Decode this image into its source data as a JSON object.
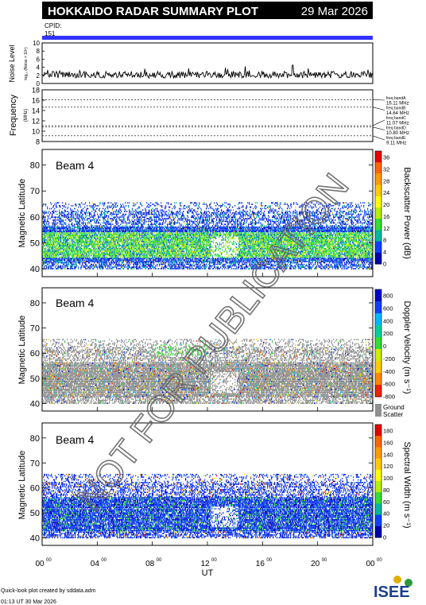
{
  "header": {
    "title": "HOKKAIDO RADAR SUMMARY PLOT",
    "date": "29 Mar 2026"
  },
  "cpid": {
    "label": "CPID:",
    "value": "151"
  },
  "noise": {
    "ylabel": "Noise Level",
    "ylabel_sub": "log₁₀ (Noise × 10⁶)",
    "ylim": [
      0,
      10
    ],
    "ticks": [
      "0",
      "2",
      "4",
      "6",
      "8",
      "10"
    ]
  },
  "frequency": {
    "ylabel": "Frequency",
    "ylabel_sub": "(MHz)",
    "ylim": [
      8,
      18
    ],
    "ticks": [
      "8",
      "10",
      "12",
      "14",
      "16",
      "18"
    ],
    "bands": [
      {
        "label": "freq bandA",
        "value": "16.11 MHz",
        "mhz": 16.11
      },
      {
        "label": "freq bandB",
        "value": "14.64 MHz",
        "mhz": 14.64
      },
      {
        "label": "freq bandC",
        "value": "11.07 MHz",
        "mhz": 11.07
      },
      {
        "label": "freq bandD",
        "value": "10.80 MHz",
        "mhz": 10.8
      },
      {
        "label": "freq bandE",
        "value": "9.11 MHz",
        "mhz": 9.11
      }
    ]
  },
  "panels": [
    {
      "beam": "Beam  4",
      "ylabel": "Magnetic Latitude",
      "colorbar_label": "Backscatter Power (dB)",
      "colorbar_ticks": [
        "36",
        "32",
        "28",
        "24",
        "20",
        "16",
        "12",
        "8",
        "4",
        "0"
      ],
      "colors": [
        "#e60000",
        "#ff6600",
        "#ff9a00",
        "#ffcc00",
        "#ffff00",
        "#b8f000",
        "#33dd33",
        "#00b8a0",
        "#1040ff",
        "#0000aa"
      ]
    },
    {
      "beam": "Beam  4",
      "ylabel": "Magnetic Latitude",
      "colorbar_label": "Doppler Velocity (m s⁻¹)",
      "colorbar_ticks": [
        "800",
        "600",
        "400",
        "200",
        "0",
        "-200",
        "-400",
        "-600",
        "-800"
      ],
      "colors": [
        "#0000cc",
        "#1040ff",
        "#00b8ff",
        "#00d0a0",
        "#33dd33",
        "#ccee00",
        "#ffcc00",
        "#ff8800",
        "#ee2200"
      ],
      "ground_label": "Ground",
      "scatter_label": "Scatter",
      "ground_color": "#909090"
    },
    {
      "beam": "Beam  4",
      "ylabel": "Magnetic Latitude",
      "colorbar_label": "Spectral Width (m s⁻¹)",
      "colorbar_ticks": [
        "180",
        "160",
        "140",
        "120",
        "100",
        "80",
        "60",
        "40",
        "20",
        "0"
      ],
      "colors": [
        "#e60000",
        "#ff6600",
        "#ff9a00",
        "#ffcc00",
        "#ffff00",
        "#b8f000",
        "#33dd33",
        "#00b8a0",
        "#1040ff",
        "#0000aa"
      ]
    }
  ],
  "lat_axis": {
    "ylim": [
      37,
      86
    ],
    "ticks": [
      "40",
      "50",
      "60",
      "70",
      "80"
    ],
    "ticks_values": [
      40,
      50,
      60,
      70,
      80
    ]
  },
  "ut_axis": {
    "xlabel": "UT",
    "xlim": [
      0,
      24
    ],
    "ticks": [
      {
        "hour": 0,
        "label": "00",
        "sup": "00"
      },
      {
        "hour": 4,
        "label": "04",
        "sup": "00"
      },
      {
        "hour": 8,
        "label": "08",
        "sup": "00"
      },
      {
        "hour": 12,
        "label": "12",
        "sup": "00"
      },
      {
        "hour": 16,
        "label": "16",
        "sup": "00"
      },
      {
        "hour": 20,
        "label": "20",
        "sup": "00"
      },
      {
        "hour": 24,
        "label": "00",
        "sup": "00"
      }
    ]
  },
  "watermark": "NOT FOR PUBLICATION",
  "footer": {
    "line1": "Quick-look plot created by sddata.adm",
    "line2": "01:13 UT 30 Mar 2026",
    "logo": "ISEE"
  },
  "chart_data": {
    "type": "heatmap",
    "title": "HOKKAIDO RADAR SUMMARY PLOT",
    "x": "UT",
    "xlim": [
      0,
      24
    ],
    "ylim": [
      37,
      86
    ],
    "series": [
      {
        "name": "Backscatter Power (dB)",
        "range": [
          0,
          36
        ],
        "lat_coverage": [
          40,
          65
        ],
        "peak_band_lat": [
          44,
          54
        ],
        "typical_value_db": 12
      },
      {
        "name": "Doppler Velocity (m s⁻¹)",
        "range": [
          -800,
          800
        ],
        "lat_coverage": [
          40,
          65
        ],
        "dominant_class": "Ground Scatter"
      },
      {
        "name": "Spectral Width (m s⁻¹)",
        "range": [
          0,
          180
        ],
        "lat_coverage": [
          40,
          65
        ],
        "typical_value": 20
      }
    ],
    "noise_ylim": [
      0,
      10
    ],
    "frequency_ylim": [
      8,
      18
    ]
  }
}
